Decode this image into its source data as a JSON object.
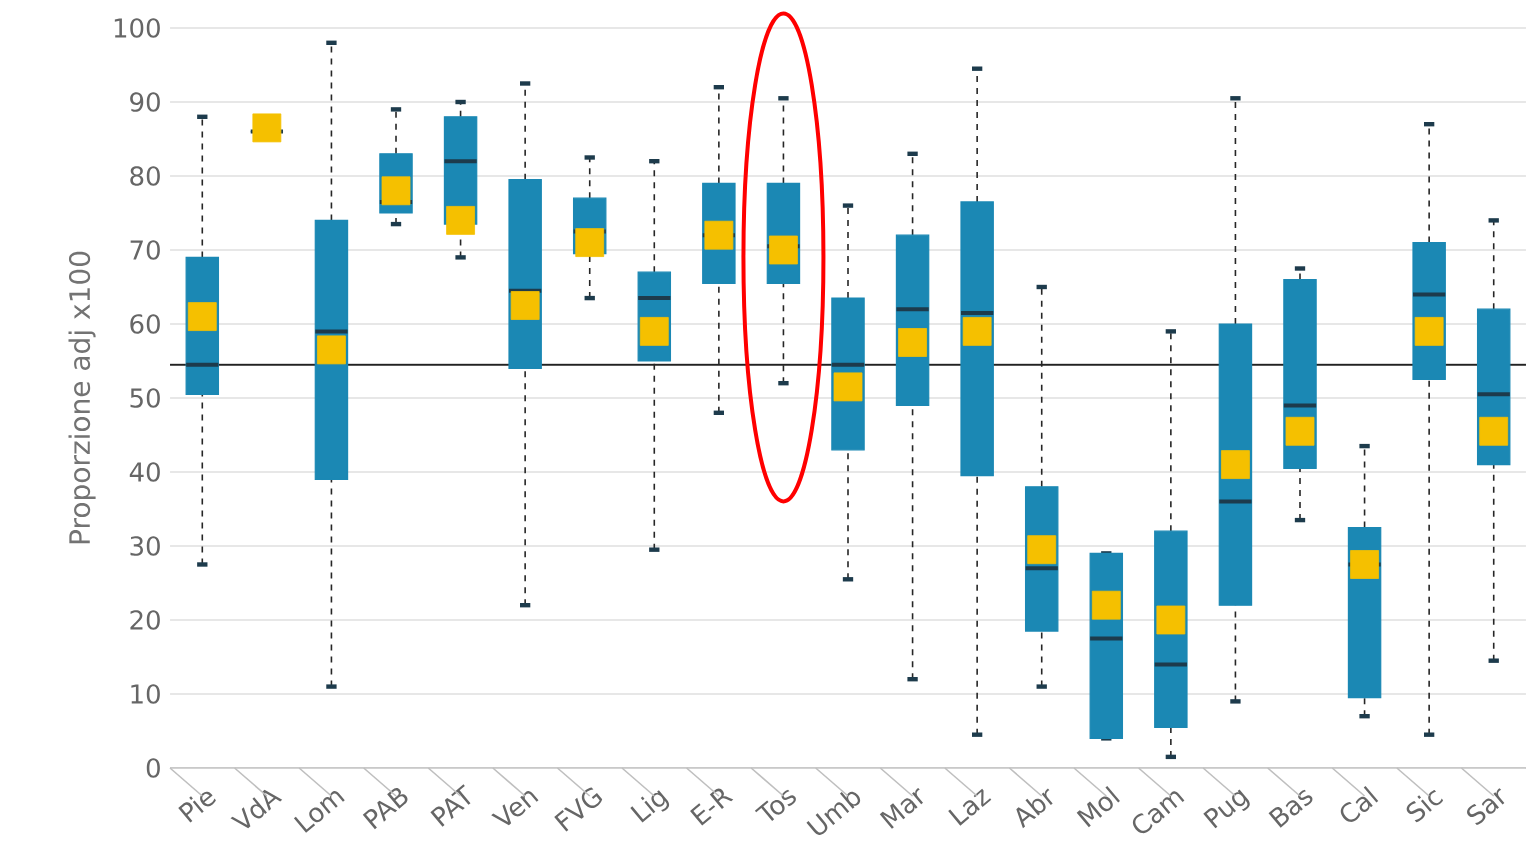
{
  "chart_data": {
    "type": "box",
    "ylabel": "Proporzione adj x100",
    "categories": [
      "Pie",
      "VdA",
      "Lom",
      "PAB",
      "PAT",
      "Ven",
      "FVG",
      "Lig",
      "E-R",
      "Tos",
      "Umb",
      "Mar",
      "Laz",
      "Abr",
      "Mol",
      "Cam",
      "Pug",
      "Bas",
      "Cal",
      "Sic",
      "Sar"
    ],
    "series": [
      {
        "color": "#1b88b4",
        "boxes": [
          {
            "low": 27.5,
            "q1": 50.5,
            "median": 54.5,
            "q3": 69,
            "high": 88,
            "mean": 61
          },
          {
            "low": 86,
            "q1": 86,
            "median": 86,
            "q3": 86,
            "high": 86,
            "mean": 86.5
          },
          {
            "low": 11,
            "q1": 39,
            "median": 59,
            "q3": 74,
            "high": 98,
            "mean": 56.5
          },
          {
            "low": 73.5,
            "q1": 75,
            "median": 76.5,
            "q3": 83,
            "high": 89,
            "mean": 78
          },
          {
            "low": 69,
            "q1": 73.5,
            "median": 82,
            "q3": 88,
            "high": 90,
            "mean": 74
          },
          {
            "low": 22,
            "q1": 54,
            "median": 64.5,
            "q3": 79.5,
            "high": 92.5,
            "mean": 62.5
          },
          {
            "low": 63.5,
            "q1": 69.5,
            "median": 72.5,
            "q3": 77,
            "high": 82.5,
            "mean": 71
          },
          {
            "low": 29.5,
            "q1": 55,
            "median": 63.5,
            "q3": 67,
            "high": 82,
            "mean": 59
          },
          {
            "low": 48,
            "q1": 65.5,
            "median": 72,
            "q3": 79,
            "high": 92,
            "mean": 72
          },
          {
            "low": 52,
            "q1": 65.5,
            "median": 70.5,
            "q3": 79,
            "high": 90.5,
            "mean": 70
          },
          {
            "low": 25.5,
            "q1": 43,
            "median": 54.5,
            "q3": 63.5,
            "high": 76,
            "mean": 51.5
          },
          {
            "low": 12,
            "q1": 49,
            "median": 62,
            "q3": 72,
            "high": 83,
            "mean": 57.5
          },
          {
            "low": 4.5,
            "q1": 39.5,
            "median": 61.5,
            "q3": 76.5,
            "high": 94.5,
            "mean": 59
          },
          {
            "low": 11,
            "q1": 18.5,
            "median": 27,
            "q3": 38,
            "high": 65,
            "mean": 29.5
          },
          {
            "low": 4,
            "q1": 4,
            "median": 17.5,
            "q3": 29,
            "high": 29,
            "mean": 22
          },
          {
            "low": 1.5,
            "q1": 5.5,
            "median": 14,
            "q3": 32,
            "high": 59,
            "mean": 20
          },
          {
            "low": 9,
            "q1": 22,
            "median": 36,
            "q3": 60,
            "high": 90.5,
            "mean": 41
          },
          {
            "low": 33.5,
            "q1": 40.5,
            "median": 49,
            "q3": 66,
            "high": 67.5,
            "mean": 45.5
          },
          {
            "low": 7,
            "q1": 9.5,
            "median": 27.5,
            "q3": 32.5,
            "high": 43.5,
            "mean": 27.5
          },
          {
            "low": 4.5,
            "q1": 52.5,
            "median": 64,
            "q3": 71,
            "high": 87,
            "mean": 59
          },
          {
            "low": 14.5,
            "q1": 41,
            "median": 50.5,
            "q3": 62,
            "high": 74,
            "mean": 45.5
          }
        ]
      }
    ],
    "ref_lines": [
      {
        "axis": "y",
        "value": 54.5,
        "color": "#222222"
      }
    ],
    "ylim": [
      0,
      100
    ],
    "yticks": [
      0,
      10,
      20,
      30,
      40,
      50,
      60,
      70,
      80,
      90,
      100
    ],
    "grid": "y"
  }
}
